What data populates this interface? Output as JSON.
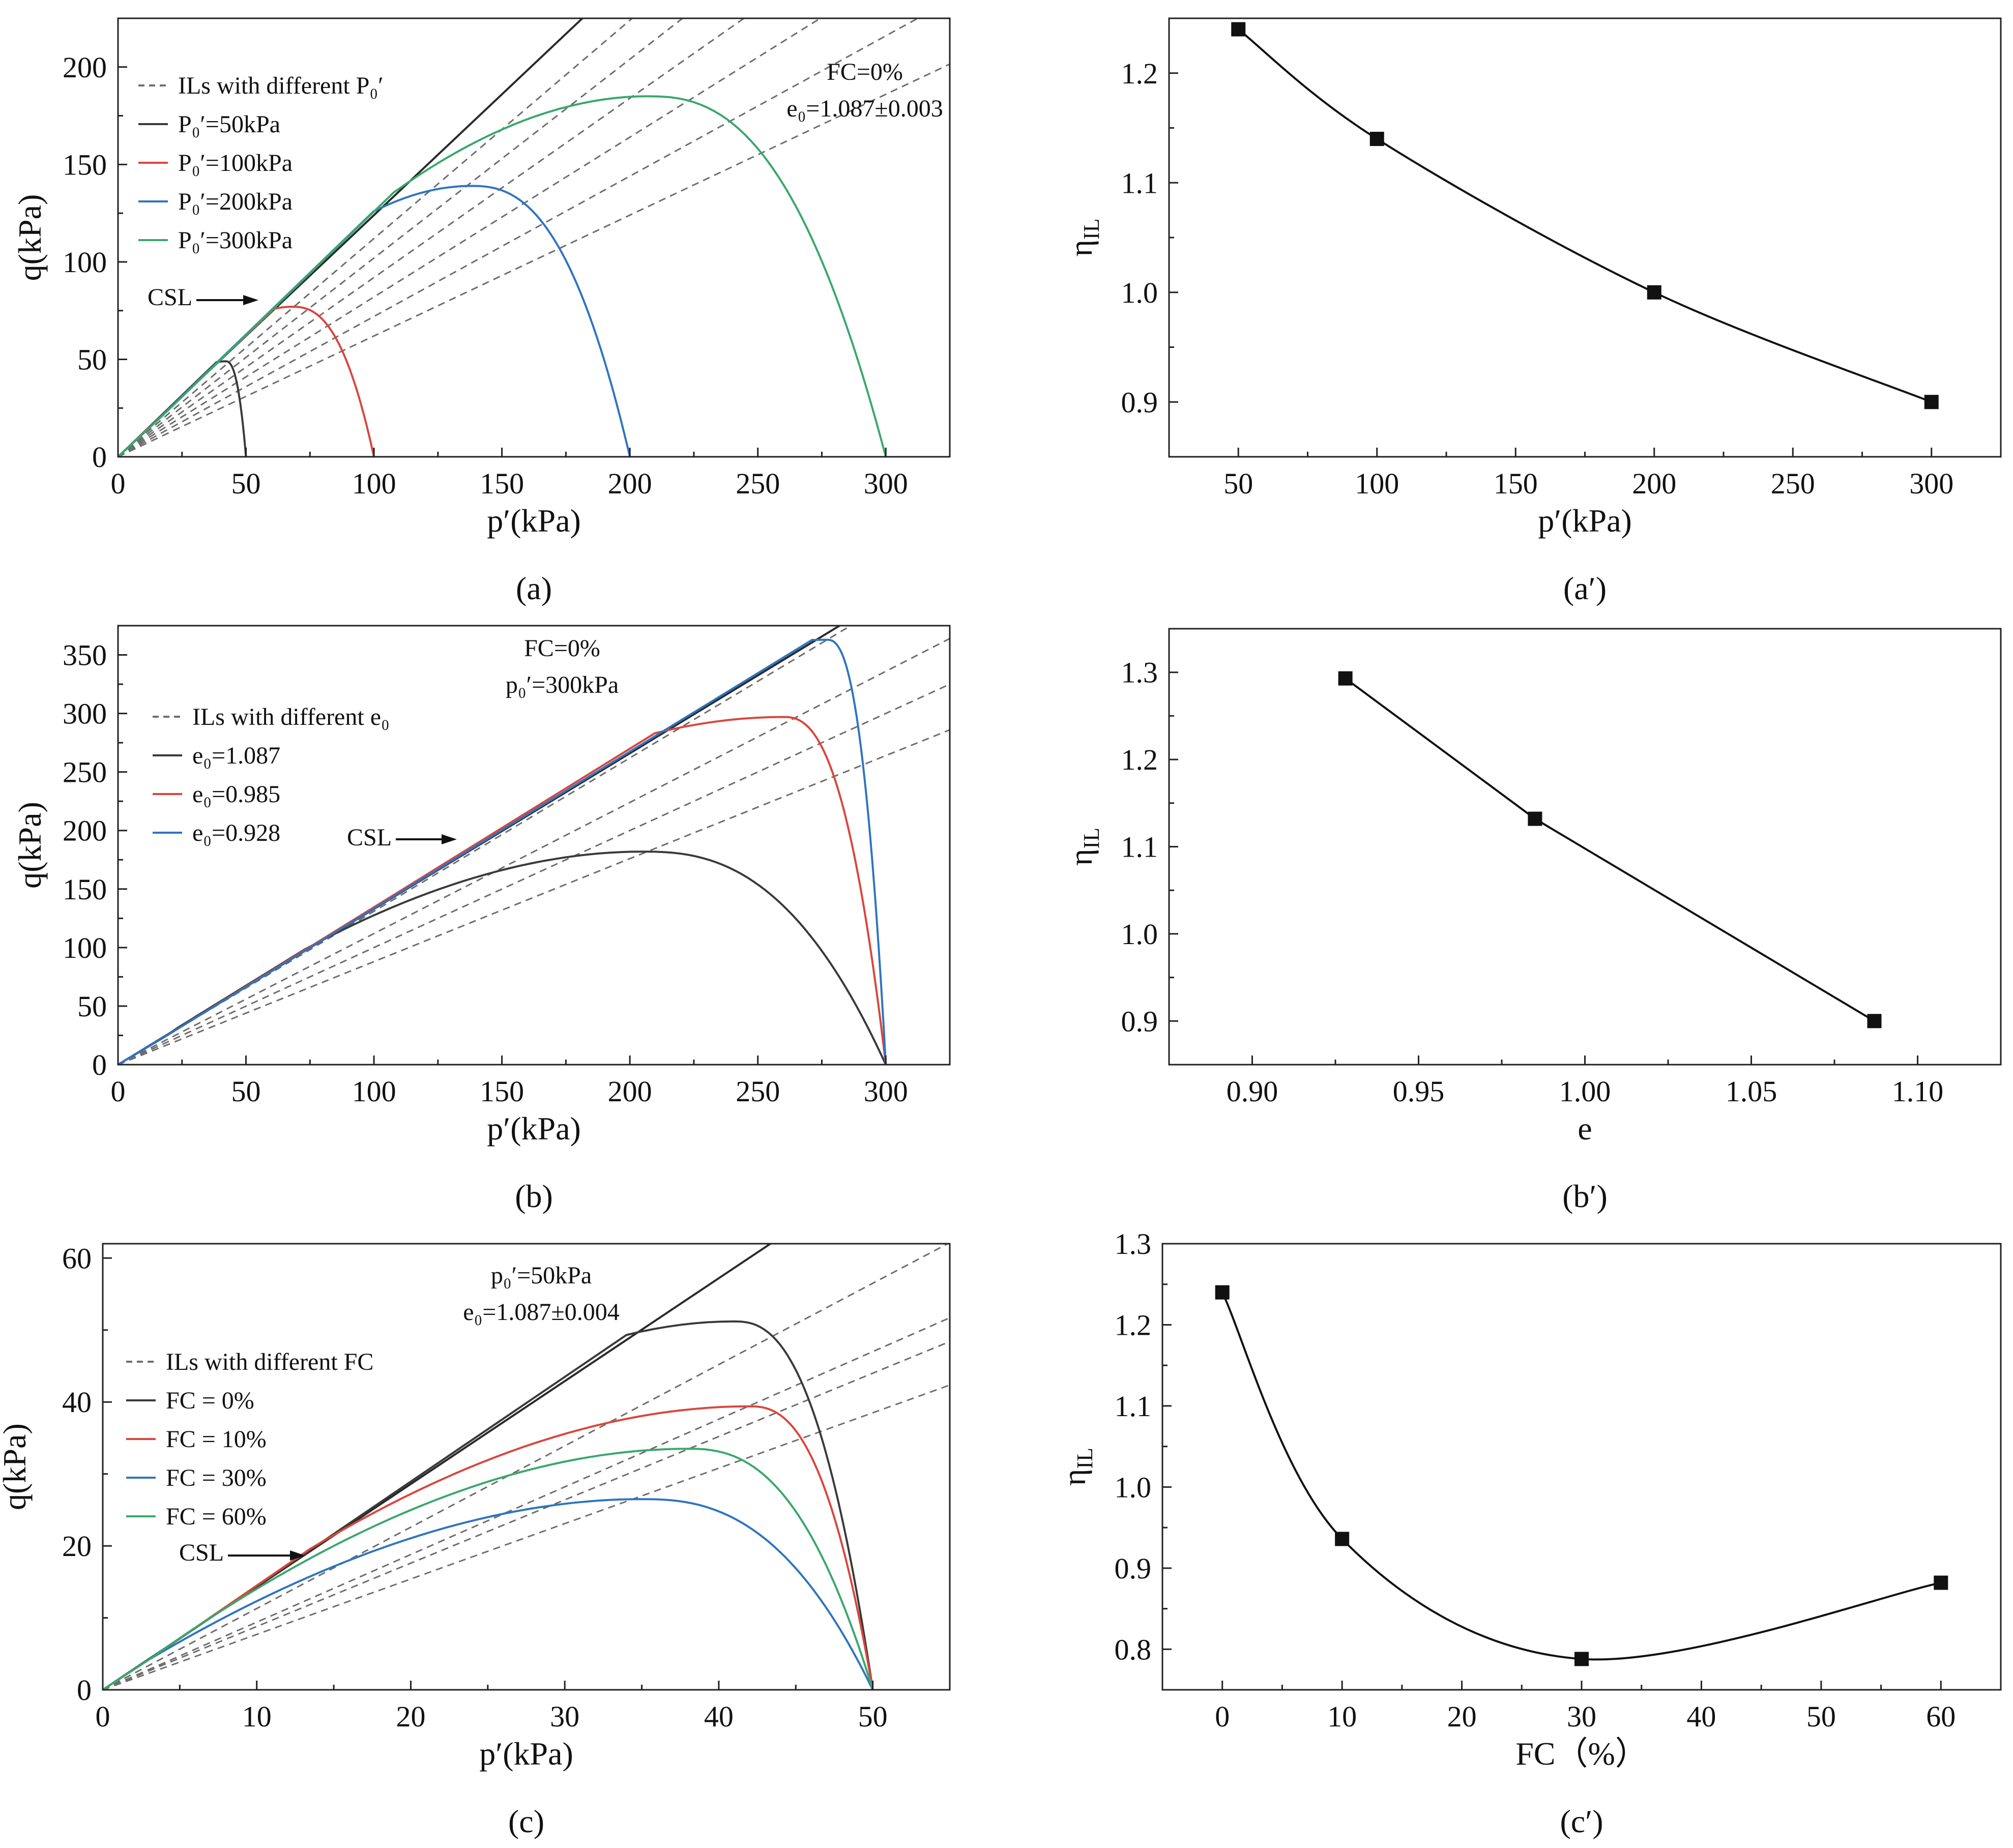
{
  "chart_data": [
    {
      "id": "a",
      "type": "line",
      "caption": "(a)",
      "xlabel": "p′(kPa)",
      "ylabel": "q(kPa)",
      "xlim": [
        0,
        325
      ],
      "ylim": [
        0,
        225
      ],
      "xticks": [
        0,
        50,
        100,
        150,
        200,
        250,
        300
      ],
      "yticks": [
        0,
        50,
        100,
        150,
        200
      ],
      "annotations": [
        "FC=0%",
        "e₀=1.087±0.003"
      ],
      "csl_label": "CSL",
      "csl_slope": 1.24,
      "il_slopes": [
        0.62,
        0.72,
        0.82,
        0.92,
        1.02,
        1.12
      ],
      "legend": [
        "ILs with different P₀′",
        "P₀′=50kPa",
        "P₀′=100kPa",
        "P₀′=200kPa",
        "P₀′=300kPa"
      ],
      "series": [
        {
          "name": "P₀′=50kPa",
          "color": "#3a3a3a",
          "p0": 50,
          "peak": [
            42,
            49
          ]
        },
        {
          "name": "P₀′=100kPa",
          "color": "#d9463e",
          "p0": 100,
          "peak": [
            68,
            77
          ]
        },
        {
          "name": "P₀′=200kPa",
          "color": "#2f74c0",
          "p0": 200,
          "peak": [
            138,
            139
          ]
        },
        {
          "name": "P₀′=300kPa",
          "color": "#3aa76d",
          "p0": 300,
          "peak": [
            207,
            185
          ]
        }
      ]
    },
    {
      "id": "a2",
      "type": "line",
      "caption": "(a′)",
      "xlabel": "p′(kPa)",
      "ylabel": "η",
      "ylabel_sub": "IL",
      "xlim": [
        25,
        325
      ],
      "ylim": [
        0.85,
        1.25
      ],
      "xticks": [
        50,
        100,
        150,
        200,
        250,
        300
      ],
      "yticks": [
        0.9,
        1.0,
        1.1,
        1.2
      ],
      "x": [
        50,
        100,
        200,
        300
      ],
      "values": [
        1.24,
        1.14,
        1.0,
        0.9
      ]
    },
    {
      "id": "b",
      "type": "line",
      "caption": "(b)",
      "xlabel": "p′(kPa)",
      "ylabel": "q(kPa)",
      "xlim": [
        0,
        325
      ],
      "ylim": [
        0,
        375
      ],
      "xticks": [
        0,
        50,
        100,
        150,
        200,
        250,
        300
      ],
      "yticks": [
        0,
        50,
        100,
        150,
        200,
        250,
        300,
        350
      ],
      "annotations": [
        "FC=0%",
        "p₀′=300kPa"
      ],
      "csl_label": "CSL",
      "csl_slope": 1.33,
      "il_slopes": [
        0.88,
        1.0,
        1.12,
        1.31
      ],
      "legend": [
        "ILs with different e₀",
        "e₀=1.087",
        "e₀=0.985",
        "e₀=0.928"
      ],
      "series": [
        {
          "name": "e₀=1.087",
          "color": "#3a3a3a",
          "p0": 300,
          "peak": [
            205,
            182
          ]
        },
        {
          "name": "e₀=0.985",
          "color": "#d9463e",
          "p0": 300,
          "peak": [
            260,
            297
          ]
        },
        {
          "name": "e₀=0.928",
          "color": "#2f74c0",
          "p0": 300,
          "peak": [
            277,
            363
          ]
        }
      ]
    },
    {
      "id": "b2",
      "type": "line",
      "caption": "(b′)",
      "xlabel": "e",
      "ylabel": "η",
      "ylabel_sub": "IL",
      "xlim": [
        0.875,
        1.125
      ],
      "ylim": [
        0.85,
        1.35
      ],
      "xticks": [
        0.9,
        0.95,
        1.0,
        1.05,
        1.1
      ],
      "xtick_labels": [
        "0.90",
        "0.95",
        "1.00",
        "1.05",
        "1.10"
      ],
      "yticks": [
        0.9,
        1.0,
        1.1,
        1.2,
        1.3
      ],
      "x": [
        0.928,
        0.985,
        1.087
      ],
      "values": [
        1.293,
        1.132,
        0.9
      ]
    },
    {
      "id": "c",
      "type": "line",
      "caption": "(c)",
      "xlabel": "p′(kPa)",
      "ylabel": "q(kPa)",
      "xlim": [
        0,
        55
      ],
      "ylim": [
        0,
        62
      ],
      "xticks": [
        0,
        10,
        20,
        30,
        40,
        50
      ],
      "yticks": [
        0,
        20,
        40,
        60
      ],
      "annotations": [
        "p₀′=50kPa",
        "e₀=1.087±0.004"
      ],
      "csl_label": "CSL",
      "csl_slope": 1.43,
      "il_slopes": [
        0.77,
        0.88,
        0.94,
        1.13
      ],
      "legend": [
        "ILs with different FC",
        "FC = 0%",
        "FC = 10%",
        "FC = 30%",
        "FC = 60%"
      ],
      "series": [
        {
          "name": "FC = 0%",
          "color": "#3a3a3a",
          "p0": 50,
          "peak": [
            41,
            51.2
          ]
        },
        {
          "name": "FC = 10%",
          "color": "#d9463e",
          "p0": 50,
          "peak": [
            42,
            39.4
          ]
        },
        {
          "name": "FC = 30%",
          "color": "#2f74c0",
          "p0": 50,
          "peak": [
            35,
            26.5
          ]
        },
        {
          "name": "FC = 60%",
          "color": "#3aa76d",
          "p0": 50,
          "peak": [
            38,
            33.5
          ]
        }
      ]
    },
    {
      "id": "c2",
      "type": "line",
      "caption": "(c′)",
      "xlabel": "FC（%）",
      "ylabel": "η",
      "ylabel_sub": "IL",
      "xlim": [
        -5,
        65
      ],
      "ylim": [
        0.75,
        1.3
      ],
      "xticks": [
        0,
        10,
        20,
        30,
        40,
        50,
        60
      ],
      "yticks": [
        0.8,
        0.9,
        1.0,
        1.1,
        1.2,
        1.3
      ],
      "x": [
        0,
        10,
        30,
        60
      ],
      "values": [
        1.24,
        0.936,
        0.788,
        0.882
      ]
    }
  ],
  "colors": {
    "axis": "#222222",
    "dashed": "#6e6e6e",
    "csl": "#2a2a2a",
    "marker": "#111111"
  }
}
